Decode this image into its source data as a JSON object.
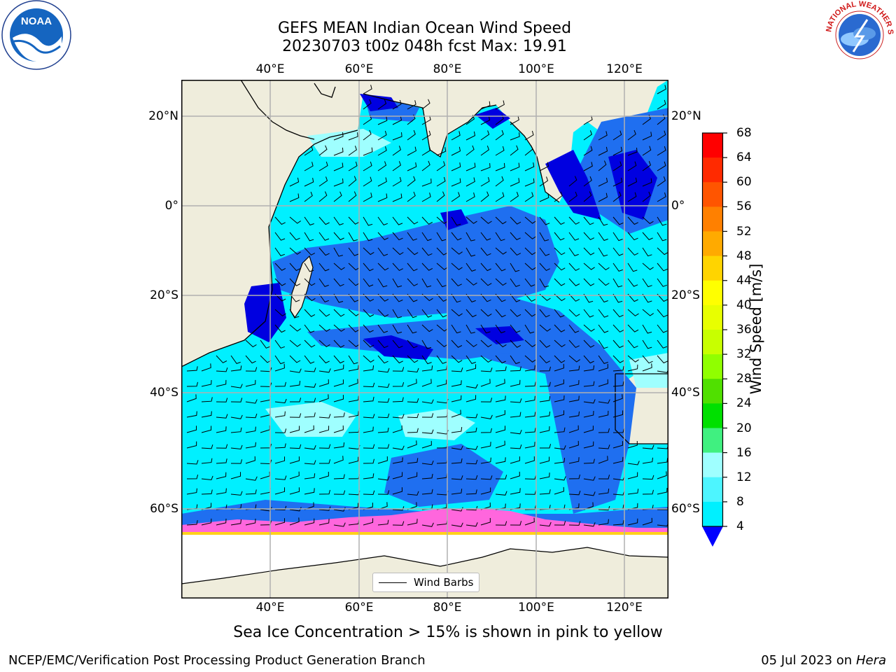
{
  "title": {
    "line1": "GEFS MEAN Indian Ocean Wind Speed",
    "line2": "20230703 t00z 048h fcst   Max: 19.91"
  },
  "map": {
    "lon_labels": [
      "40°E",
      "60°E",
      "80°E",
      "100°E",
      "120°E"
    ],
    "lat_labels_left": [
      "20°N",
      "0°",
      "20°S",
      "40°S",
      "60°S"
    ],
    "lat_labels_right": [
      "20°N",
      "0°",
      "20°S",
      "40°S",
      "60°S"
    ],
    "legend_label": "Wind Barbs",
    "colors": {
      "land": "#efeddc",
      "ocean_4_8": "#1f6ff0",
      "ocean_8_12": "#00f0ff",
      "ocean_12_16": "#4df5ff",
      "ocean_16_20": "#9fffff",
      "calm": "#0000e0",
      "sea_ice": "#ff66dd",
      "grid": "#b0b0b0"
    }
  },
  "colorbar": {
    "label": "Wind Speed [m/s]",
    "ticks": [
      "68",
      "64",
      "60",
      "56",
      "52",
      "48",
      "44",
      "40",
      "36",
      "32",
      "28",
      "24",
      "20",
      "16",
      "12",
      "8",
      "4"
    ],
    "colors": [
      "#ff0000",
      "#ff2a00",
      "#ff5500",
      "#ff8000",
      "#ffaa00",
      "#ffd400",
      "#ffff00",
      "#e8ff00",
      "#c8ff00",
      "#90ff00",
      "#50e000",
      "#00e000",
      "#40f080",
      "#9fffff",
      "#4df5ff",
      "#00f0ff",
      "#1f6ff0"
    ],
    "extend_color": "#0000ff"
  },
  "caption": "Sea Ice Concentration > 15% is shown in pink to yellow",
  "footer": {
    "left": "NCEP/EMC/Verification Post Processing Product Generation Branch",
    "right_prefix": "05 Jul 2023 on ",
    "right_host": "Hera"
  },
  "logos": {
    "noaa": "NOAA",
    "nws": "NATIONAL WEATHER SERVICE"
  }
}
